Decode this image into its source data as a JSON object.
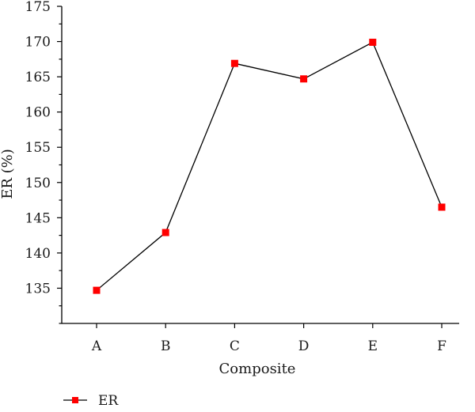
{
  "chart_data": {
    "type": "line",
    "categories": [
      "A",
      "B",
      "C",
      "D",
      "E",
      "F"
    ],
    "series": [
      {
        "name": "ER",
        "values": [
          134.7,
          142.9,
          166.9,
          164.7,
          169.9,
          146.5
        ],
        "color": "#ff0000",
        "marker": "square"
      }
    ],
    "xlabel": "Composite",
    "ylabel": "ER (%)",
    "ylim": [
      130,
      175
    ],
    "yticks": [
      135,
      140,
      145,
      150,
      155,
      160,
      165,
      170,
      175
    ],
    "grid": false,
    "legend_position": "bottom-left",
    "line_color": "#000000"
  }
}
